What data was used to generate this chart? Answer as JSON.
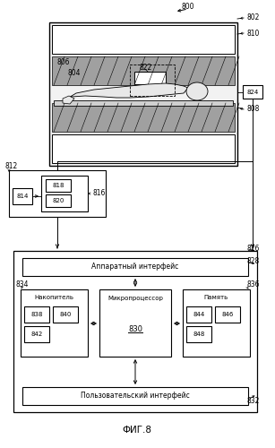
{
  "title": "ФИГ.8",
  "bg_color": "#ffffff",
  "label_800": "800",
  "label_802": "802",
  "label_804": "804",
  "label_806": "806",
  "label_808": "808",
  "label_810": "810",
  "label_812": "812",
  "label_814": "814",
  "label_816": "816",
  "label_818": "818",
  "label_820": "820",
  "label_822": "822",
  "label_824": "824",
  "label_826": "826",
  "label_828": "828",
  "label_830": "830",
  "label_832": "832",
  "label_834": "834",
  "label_836": "836",
  "label_838": "838",
  "label_840": "840",
  "label_842": "842",
  "label_844": "844",
  "label_846": "846",
  "label_848": "848",
  "text_hardware": "Аппаратный интерфейс",
  "text_microprocessor": "Микропроцессор",
  "text_storage": "Накопитель",
  "text_memory": "Память",
  "text_user_interface": "Пользовательский интерфейс"
}
